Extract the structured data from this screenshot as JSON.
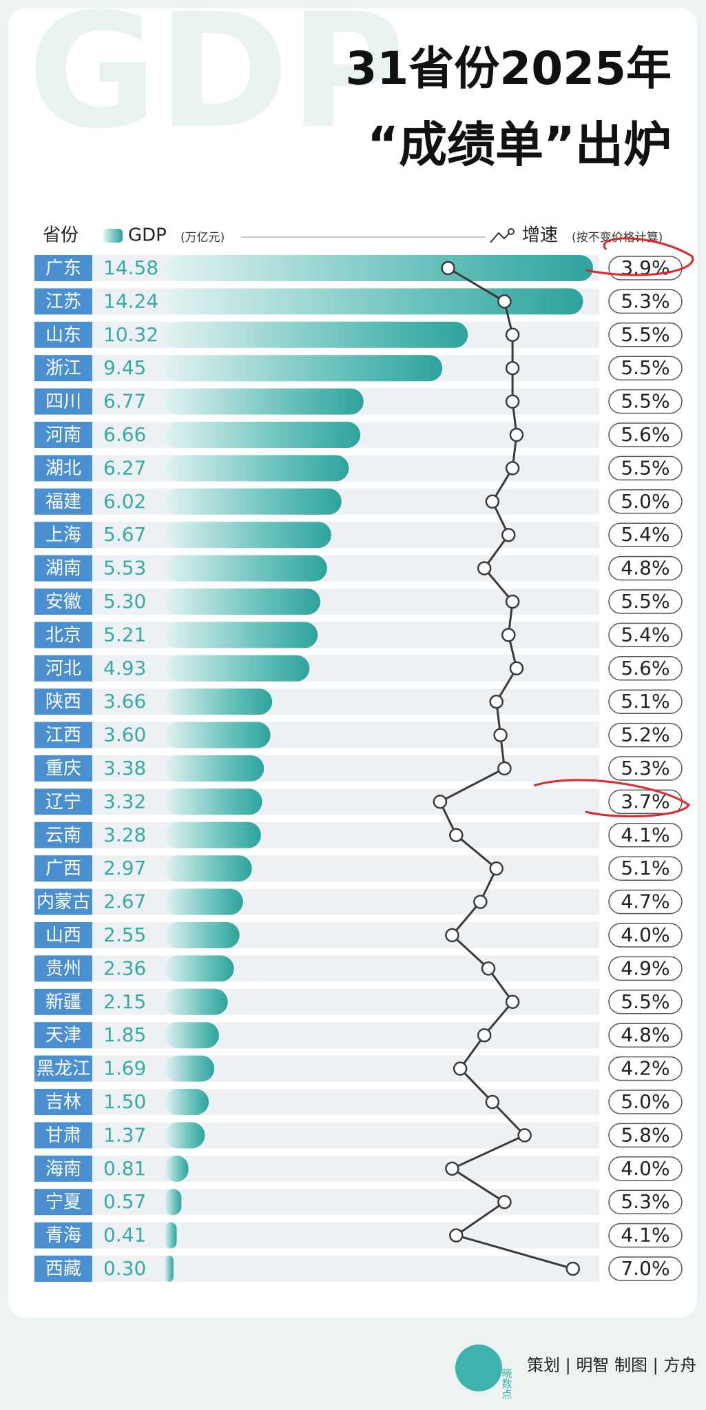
{
  "chart_data": {
    "type": "bar",
    "watermark": "GDP",
    "title": "31省份2025年",
    "subtitle": "“成绩单”出炉",
    "category_header": "省份",
    "categories": [
      "广东",
      "江苏",
      "山东",
      "浙江",
      "四川",
      "河南",
      "湖北",
      "福建",
      "上海",
      "湖南",
      "安徽",
      "北京",
      "河北",
      "陕西",
      "江西",
      "重庆",
      "辽宁",
      "云南",
      "广西",
      "内蒙古",
      "山西",
      "贵州",
      "新疆",
      "天津",
      "黑龙江",
      "吉林",
      "甘肃",
      "海南",
      "宁夏",
      "青海",
      "西藏"
    ],
    "xlim": [
      0,
      15
    ],
    "x2lim": [
      3,
      7.5
    ],
    "series": [
      {
        "name": "GDP",
        "unit": "(万亿元)",
        "type": "bar",
        "color": "#35aba5",
        "values": [
          14.58,
          14.24,
          10.32,
          9.45,
          6.77,
          6.66,
          6.27,
          6.02,
          5.67,
          5.53,
          5.3,
          5.21,
          4.93,
          3.66,
          3.6,
          3.38,
          3.32,
          3.28,
          2.97,
          2.67,
          2.55,
          2.36,
          2.15,
          1.85,
          1.69,
          1.5,
          1.37,
          0.81,
          0.57,
          0.41,
          0.3
        ],
        "value_labels": [
          "14.58",
          "14.24",
          "10.32",
          "9.45",
          "6.77",
          "6.66",
          "6.27",
          "6.02",
          "5.67",
          "5.53",
          "5.30",
          "5.21",
          "4.93",
          "3.66",
          "3.60",
          "3.38",
          "3.32",
          "3.28",
          "2.97",
          "2.67",
          "2.55",
          "2.36",
          "2.15",
          "1.85",
          "1.69",
          "1.50",
          "1.37",
          "0.81",
          "0.57",
          "0.41",
          "0.30"
        ]
      },
      {
        "name": "增速",
        "unit": "(按不变价格计算)",
        "type": "line",
        "color": "#3a3a3a",
        "values": [
          3.9,
          5.3,
          5.5,
          5.5,
          5.5,
          5.6,
          5.5,
          5.0,
          5.4,
          4.8,
          5.5,
          5.4,
          5.6,
          5.1,
          5.2,
          5.3,
          3.7,
          4.1,
          5.1,
          4.7,
          4.0,
          4.9,
          5.5,
          4.8,
          4.2,
          5.0,
          5.8,
          4.0,
          5.3,
          4.1,
          7.0
        ],
        "value_labels": [
          "3.9%",
          "5.3%",
          "5.5%",
          "5.5%",
          "5.5%",
          "5.6%",
          "5.5%",
          "5.0%",
          "5.4%",
          "4.8%",
          "5.5%",
          "5.4%",
          "5.6%",
          "5.1%",
          "5.2%",
          "5.3%",
          "3.7%",
          "4.1%",
          "5.1%",
          "4.7%",
          "4.0%",
          "4.9%",
          "5.5%",
          "4.8%",
          "4.2%",
          "5.0%",
          "5.8%",
          "4.0%",
          "5.3%",
          "4.1%",
          "7.0%"
        ]
      }
    ]
  },
  "footer": {
    "logo": "晓数点",
    "credits": "策划 | 明智  制图 | 方舟"
  }
}
